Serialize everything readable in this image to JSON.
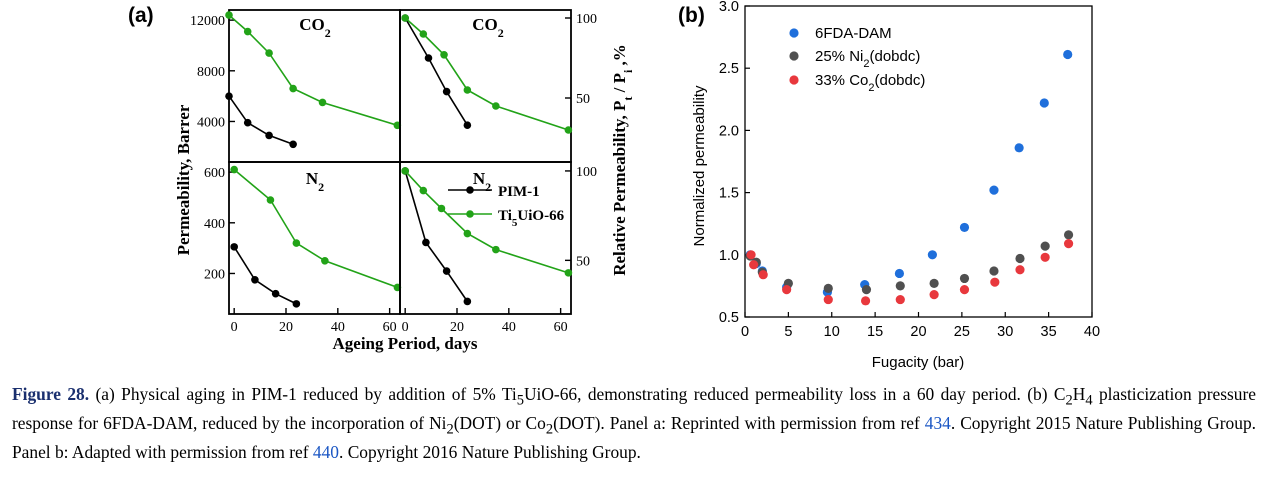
{
  "panel_a": {
    "label": "(a)",
    "left_axis_title": "Permeability, Barrer",
    "right_axis_title": "Relative Permeability, P",
    "right_axis_title_sub1": "t",
    "right_axis_title_mid": " / P",
    "right_axis_title_sub2": "i",
    "right_axis_title_end": " ,%",
    "x_axis_title": "Ageing Period, days",
    "title_co2_main": "CO",
    "title_co2_sub": "2",
    "title_n2_main": "N",
    "title_n2_sub": "2",
    "legend": [
      {
        "main": "PIM-1",
        "sub": "",
        "after": ""
      },
      {
        "main": "Ti",
        "sub": "5",
        "after": "UiO-66"
      }
    ]
  },
  "panel_b": {
    "label": "(b)",
    "x_axis_title": "Fugacity (bar)",
    "y_axis_title": "Normalized permeability",
    "legend": [
      {
        "main": "6FDA-DAM",
        "sub": "",
        "after": ""
      },
      {
        "main": "25% Ni",
        "sub": "2",
        "after": "(dobdc)"
      },
      {
        "main": "33% Co",
        "sub": "2",
        "after": "(dobdc)"
      }
    ]
  },
  "chart_data": [
    {
      "type": "line",
      "title": "CO2",
      "ylabel": "Permeability, Barrer",
      "xlim": [
        0,
        64
      ],
      "ylim": [
        800,
        12800
      ],
      "yticks": [
        4000,
        8000,
        12000
      ],
      "series": [
        {
          "name": "PIM-1",
          "color": "#000000",
          "x": [
            0,
            7,
            15,
            24
          ],
          "y": [
            6000,
            3900,
            2900,
            2200
          ]
        },
        {
          "name": "Ti5UiO-66",
          "color": "#22a318",
          "x": [
            0,
            7,
            15,
            24,
            35,
            63
          ],
          "y": [
            12400,
            11100,
            9400,
            6600,
            5500,
            3700
          ]
        }
      ]
    },
    {
      "type": "line",
      "title": "CO2",
      "ylabel": "Relative Permeability, Pt / Pi ,%",
      "xlim": [
        -2,
        64
      ],
      "ylim": [
        10,
        105
      ],
      "yticks": [
        50,
        100
      ],
      "series": [
        {
          "name": "PIM-1",
          "color": "#000000",
          "x": [
            0,
            9,
            16,
            24
          ],
          "y": [
            100,
            75,
            54,
            33
          ]
        },
        {
          "name": "Ti5UiO-66",
          "color": "#22a318",
          "x": [
            0,
            7,
            15,
            24,
            35,
            63
          ],
          "y": [
            100,
            90,
            77,
            55,
            45,
            30
          ]
        }
      ]
    },
    {
      "type": "line",
      "title": "N2",
      "xlabel": "Ageing Period, days",
      "ylabel": "Permeability, Barrer",
      "xlim": [
        -2,
        64
      ],
      "ylim": [
        40,
        640
      ],
      "yticks": [
        200,
        400,
        600
      ],
      "xticks": [
        0,
        20,
        40,
        60
      ],
      "series": [
        {
          "name": "PIM-1",
          "color": "#000000",
          "x": [
            0,
            8,
            16,
            24
          ],
          "y": [
            305,
            175,
            120,
            80
          ]
        },
        {
          "name": "Ti5UiO-66",
          "color": "#22a318",
          "x": [
            0,
            14,
            24,
            35,
            63
          ],
          "y": [
            610,
            490,
            320,
            250,
            145
          ]
        }
      ]
    },
    {
      "type": "line",
      "title": "N2",
      "xlabel": "Ageing Period, days",
      "ylabel": "Relative Permeability, Pt / Pi ,%",
      "xlim": [
        -2,
        64
      ],
      "ylim": [
        20,
        105
      ],
      "yticks": [
        50,
        100
      ],
      "xticks": [
        0,
        20,
        40,
        60
      ],
      "series": [
        {
          "name": "PIM-1",
          "color": "#000000",
          "x": [
            0,
            8,
            16,
            24
          ],
          "y": [
            100,
            60,
            44,
            27
          ]
        },
        {
          "name": "Ti5UiO-66",
          "color": "#22a318",
          "x": [
            0,
            7,
            14,
            24,
            35,
            63
          ],
          "y": [
            100,
            89,
            79,
            65,
            56,
            43
          ]
        }
      ]
    },
    {
      "type": "scatter",
      "xlabel": "Fugacity (bar)",
      "ylabel": "Normalized permeability",
      "xlim": [
        0,
        40
      ],
      "ylim": [
        0.5,
        3.0
      ],
      "xticks": [
        0,
        5,
        10,
        15,
        20,
        25,
        30,
        35,
        40
      ],
      "yticks": [
        0.5,
        1.0,
        1.5,
        2.0,
        2.5,
        3.0
      ],
      "legend_position": "top-left",
      "series": [
        {
          "name": "6FDA-DAM",
          "color": "#1f6fdb",
          "x": [
            0.6,
            1.3,
            2.0,
            4.8,
            9.5,
            13.8,
            17.8,
            21.6,
            25.3,
            28.7,
            31.6,
            34.5,
            37.2
          ],
          "y": [
            1.0,
            0.93,
            0.87,
            0.74,
            0.7,
            0.76,
            0.85,
            1.0,
            1.22,
            1.52,
            1.86,
            2.22,
            2.61
          ]
        },
        {
          "name": "25% Ni2(dobdc)",
          "color": "#505050",
          "x": [
            0.6,
            1.3,
            2.0,
            5.0,
            9.6,
            14.0,
            17.9,
            21.8,
            25.3,
            28.7,
            31.7,
            34.6,
            37.3
          ],
          "y": [
            0.99,
            0.94,
            0.86,
            0.77,
            0.73,
            0.72,
            0.75,
            0.77,
            0.81,
            0.87,
            0.97,
            1.07,
            1.16
          ]
        },
        {
          "name": "33% Co2(dobdc)",
          "color": "#e8383d",
          "x": [
            0.7,
            1.0,
            2.1,
            4.8,
            9.6,
            13.9,
            17.9,
            21.8,
            25.3,
            28.8,
            31.7,
            34.6,
            37.3
          ],
          "y": [
            1.0,
            0.92,
            0.84,
            0.72,
            0.64,
            0.63,
            0.64,
            0.68,
            0.72,
            0.78,
            0.88,
            0.98,
            1.09
          ]
        }
      ]
    }
  ],
  "caption": {
    "label": "Figure 28.",
    "l1a": " (a) Physical aging in PIM-1 reduced by addition of 5% Ti",
    "l1b": "5",
    "l1c": "UiO-66, demonstrating reduced permeability loss in a 60 day period. (b) C",
    "l1d": "2",
    "l1e": "H",
    "l1f": "4",
    "l1g": " plasticization pressure response for 6FDA-DAM, reduced by the incorporation of Ni",
    "l1h": "2",
    "l1i": "(DOT) or Co",
    "l1j": "2",
    "l1k": "(DOT). Panel a: Reprinted with permission from ref ",
    "ref1": "434",
    "l1l": ". Copyright 2015 Nature Publishing Group. Panel b: Adapted with permission from ref ",
    "ref2": "440",
    "l1m": ". Copyright 2016 Nature Publishing Group."
  }
}
